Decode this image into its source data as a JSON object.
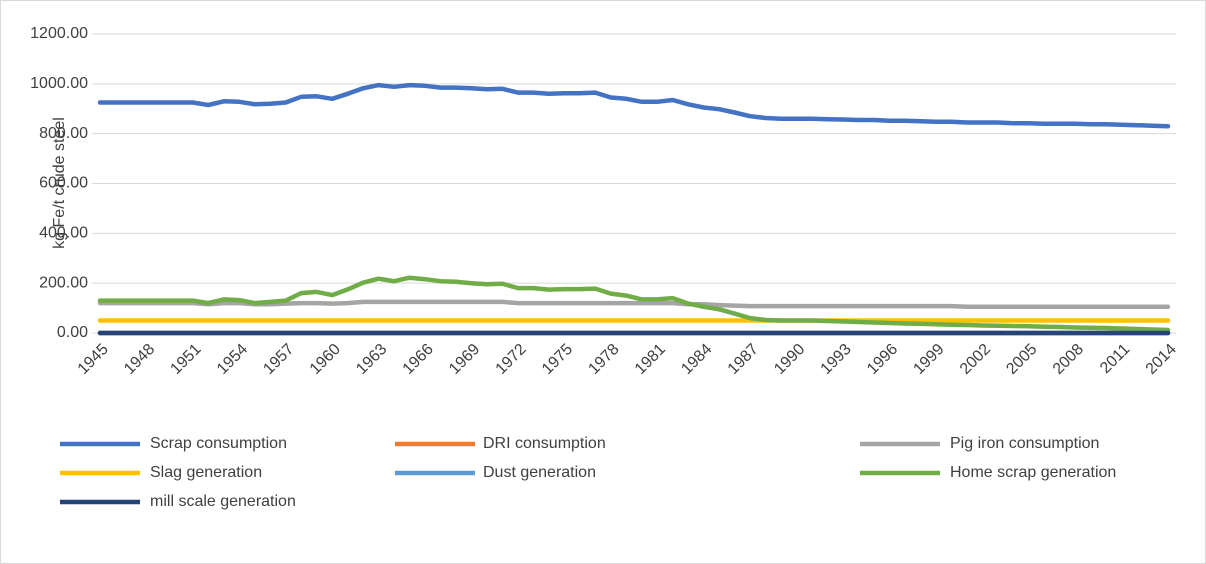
{
  "chart_data": {
    "type": "line",
    "ylabel": "kg Fe/t crude steel",
    "categories": [
      "1945",
      null,
      null,
      "1948",
      null,
      null,
      "1951",
      null,
      null,
      "1954",
      null,
      null,
      "1957",
      null,
      null,
      "1960",
      null,
      null,
      "1963",
      null,
      null,
      "1966",
      null,
      null,
      "1969",
      null,
      null,
      "1972",
      null,
      null,
      "1975",
      null,
      null,
      "1978",
      null,
      null,
      "1981",
      null,
      null,
      "1984",
      null,
      null,
      "1987",
      null,
      null,
      "1990",
      null,
      null,
      "1993",
      null,
      null,
      "1996",
      null,
      null,
      "1999",
      null,
      null,
      "2002",
      null,
      null,
      "2005",
      null,
      null,
      "2008",
      null,
      null,
      "2011",
      null,
      null,
      "2014"
    ],
    "ylim": [
      0,
      1200
    ],
    "yticks": [
      {
        "value": 0,
        "label": "0.00"
      },
      {
        "value": 200,
        "label": "200.00"
      },
      {
        "value": 400,
        "label": "400.00"
      },
      {
        "value": 600,
        "label": "600.00"
      },
      {
        "value": 800,
        "label": "800.00"
      },
      {
        "value": 1000,
        "label": "1000.00"
      },
      {
        "value": 1200,
        "label": "1200.00"
      }
    ],
    "grid": true,
    "series": [
      {
        "name": "Scrap consumption",
        "color": "#4472c4",
        "values": [
          925,
          925,
          925,
          925,
          925,
          925,
          925,
          915,
          930,
          928,
          918,
          920,
          925,
          948,
          950,
          940,
          960,
          982,
          995,
          988,
          995,
          992,
          985,
          985,
          982,
          978,
          980,
          965,
          965,
          960,
          962,
          962,
          965,
          945,
          940,
          928,
          928,
          935,
          918,
          905,
          898,
          885,
          870,
          863,
          860,
          860,
          860,
          858,
          857,
          855,
          855,
          852,
          852,
          850,
          848,
          848,
          845,
          845,
          845,
          842,
          842,
          840,
          840,
          840,
          838,
          838,
          836,
          834,
          832,
          830
        ]
      },
      {
        "name": "DRI consumption",
        "color": "#ed7d31",
        "values": [
          0,
          0,
          0,
          0,
          0,
          0,
          0,
          0,
          0,
          0,
          0,
          0,
          0,
          0,
          0,
          0,
          0,
          0,
          0,
          0,
          0,
          0,
          0,
          0,
          0,
          0,
          0,
          0,
          0,
          0,
          0,
          0,
          0,
          0,
          0,
          0,
          0,
          0,
          0,
          0,
          0,
          0,
          0,
          0,
          0,
          0,
          0,
          0,
          0,
          0,
          0,
          0,
          0,
          0,
          0,
          0,
          0,
          0,
          0,
          0,
          0,
          0,
          0,
          0,
          0,
          0,
          0,
          0,
          0,
          0
        ]
      },
      {
        "name": "Pig iron consumption",
        "color": "#a5a5a5",
        "values": [
          120,
          120,
          120,
          120,
          120,
          120,
          120,
          115,
          120,
          120,
          115,
          115,
          118,
          120,
          120,
          118,
          120,
          125,
          125,
          125,
          125,
          125,
          125,
          125,
          125,
          125,
          125,
          120,
          120,
          120,
          120,
          120,
          120,
          120,
          120,
          120,
          120,
          120,
          115,
          115,
          112,
          110,
          108,
          108,
          108,
          108,
          108,
          108,
          108,
          108,
          108,
          108,
          108,
          108,
          108,
          108,
          105,
          105,
          105,
          105,
          105,
          105,
          105,
          105,
          105,
          105,
          105,
          105,
          105,
          105
        ]
      },
      {
        "name": "Slag generation",
        "color": "#ffc000",
        "values": [
          50,
          50,
          50,
          50,
          50,
          50,
          50,
          50,
          50,
          50,
          50,
          50,
          50,
          50,
          50,
          50,
          50,
          50,
          50,
          50,
          50,
          50,
          50,
          50,
          50,
          50,
          50,
          50,
          50,
          50,
          50,
          50,
          50,
          50,
          50,
          50,
          50,
          50,
          50,
          50,
          50,
          50,
          50,
          50,
          50,
          50,
          50,
          50,
          50,
          50,
          50,
          50,
          50,
          50,
          50,
          50,
          50,
          50,
          50,
          50,
          50,
          50,
          50,
          50,
          50,
          50,
          50,
          50,
          50,
          50
        ]
      },
      {
        "name": "Dust generation",
        "color": "#5b9bd5",
        "values": [
          0,
          0,
          0,
          0,
          0,
          0,
          0,
          0,
          0,
          0,
          0,
          0,
          0,
          0,
          0,
          0,
          0,
          0,
          0,
          0,
          0,
          0,
          0,
          0,
          0,
          0,
          0,
          0,
          0,
          0,
          0,
          0,
          0,
          0,
          0,
          0,
          0,
          0,
          0,
          0,
          0,
          0,
          0,
          0,
          0,
          0,
          0,
          0,
          0,
          0,
          0,
          0,
          0,
          0,
          0,
          0,
          0,
          0,
          0,
          0,
          0,
          0,
          0,
          0,
          0,
          0,
          0,
          0,
          0,
          0
        ]
      },
      {
        "name": "Home scrap generation",
        "color": "#70ad47",
        "values": [
          130,
          130,
          130,
          130,
          130,
          130,
          130,
          120,
          135,
          132,
          120,
          125,
          130,
          160,
          165,
          152,
          175,
          202,
          218,
          208,
          222,
          216,
          208,
          206,
          200,
          196,
          198,
          180,
          180,
          174,
          176,
          176,
          178,
          158,
          150,
          135,
          135,
          140,
          118,
          105,
          95,
          78,
          60,
          52,
          50,
          50,
          50,
          48,
          46,
          44,
          42,
          40,
          38,
          37,
          35,
          33,
          32,
          30,
          29,
          28,
          27,
          25,
          24,
          22,
          21,
          20,
          18,
          16,
          14,
          12
        ]
      },
      {
        "name": "mill scale generation",
        "color": "#264478",
        "values": [
          0,
          0,
          0,
          0,
          0,
          0,
          0,
          0,
          0,
          0,
          0,
          0,
          0,
          0,
          0,
          0,
          0,
          0,
          0,
          0,
          0,
          0,
          0,
          0,
          0,
          0,
          0,
          0,
          0,
          0,
          0,
          0,
          0,
          0,
          0,
          0,
          0,
          0,
          0,
          0,
          0,
          0,
          0,
          0,
          0,
          0,
          0,
          0,
          0,
          0,
          0,
          0,
          0,
          0,
          0,
          0,
          0,
          0,
          0,
          0,
          0,
          0,
          0,
          0,
          0,
          0,
          0,
          0,
          0,
          0
        ]
      }
    ]
  }
}
